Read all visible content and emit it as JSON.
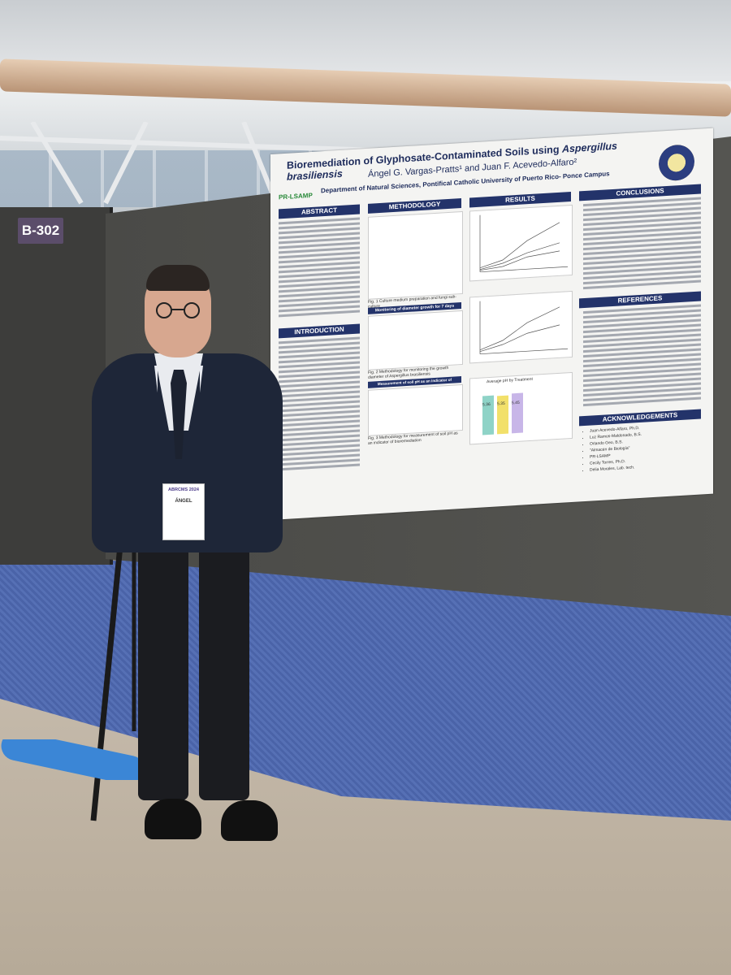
{
  "scene": {
    "booth_number": "B-302",
    "colors": {
      "carpet": "#4a63a8",
      "board": "#4a4a47",
      "poster_header": "#23336a"
    }
  },
  "poster": {
    "title_plain": "Bioremediation of Glyphosate-Contaminated Soils using ",
    "title_italic": "Aspergillus brasiliensis",
    "authors": "Ángel G. Vargas-Pratts¹ and Juan F. Acevedo-Alfaro²",
    "affiliation": "Department of Natural Sciences, Pontifical Catholic University of Puerto Rico- Ponce Campus",
    "logo_text": "PR-LSAMP",
    "sections": {
      "abstract": "ABSTRACT",
      "introduction": "INTRODUCTION",
      "methodology": "METHODOLOGY",
      "results": "RESULTS",
      "conclusions": "CONCLUSIONS",
      "references": "REFERENCES",
      "acknowledgements": "ACKNOWLEDGEMENTS"
    },
    "captions": {
      "fig1": "Fig. 1 Culture medium preparation and fungi sub-culture",
      "fig2_head": "Monitoring of diameter growth for 7 days",
      "fig2": "Fig. 2 Methodology for monitoring the growth diameter of Aspergillus brasiliensis",
      "fig3_head": "Measurement of soil pH as an indicator of bioremediation",
      "fig3": "Fig. 3 Methodology for measurement of soil pH as an indicator of bioremediation",
      "fig6_head": "Average pH by Treatment",
      "fig6_values": [
        "5.36",
        "5.35",
        "5.45"
      ]
    },
    "acknowledgements": [
      "Juan Acevedo-Alfaro, Ph.D.",
      "Luz Ramos-Maldonado, B.S.",
      "Orlando Geo, B.S.",
      "\"Almacén de Biología\"",
      "PR-LSAMP",
      "Cecily Torres, Ph.D.",
      "Delia Morales, Lab. tech."
    ]
  },
  "badge": {
    "conference": "ABRCMS 2024",
    "name": "ÁNGEL"
  }
}
